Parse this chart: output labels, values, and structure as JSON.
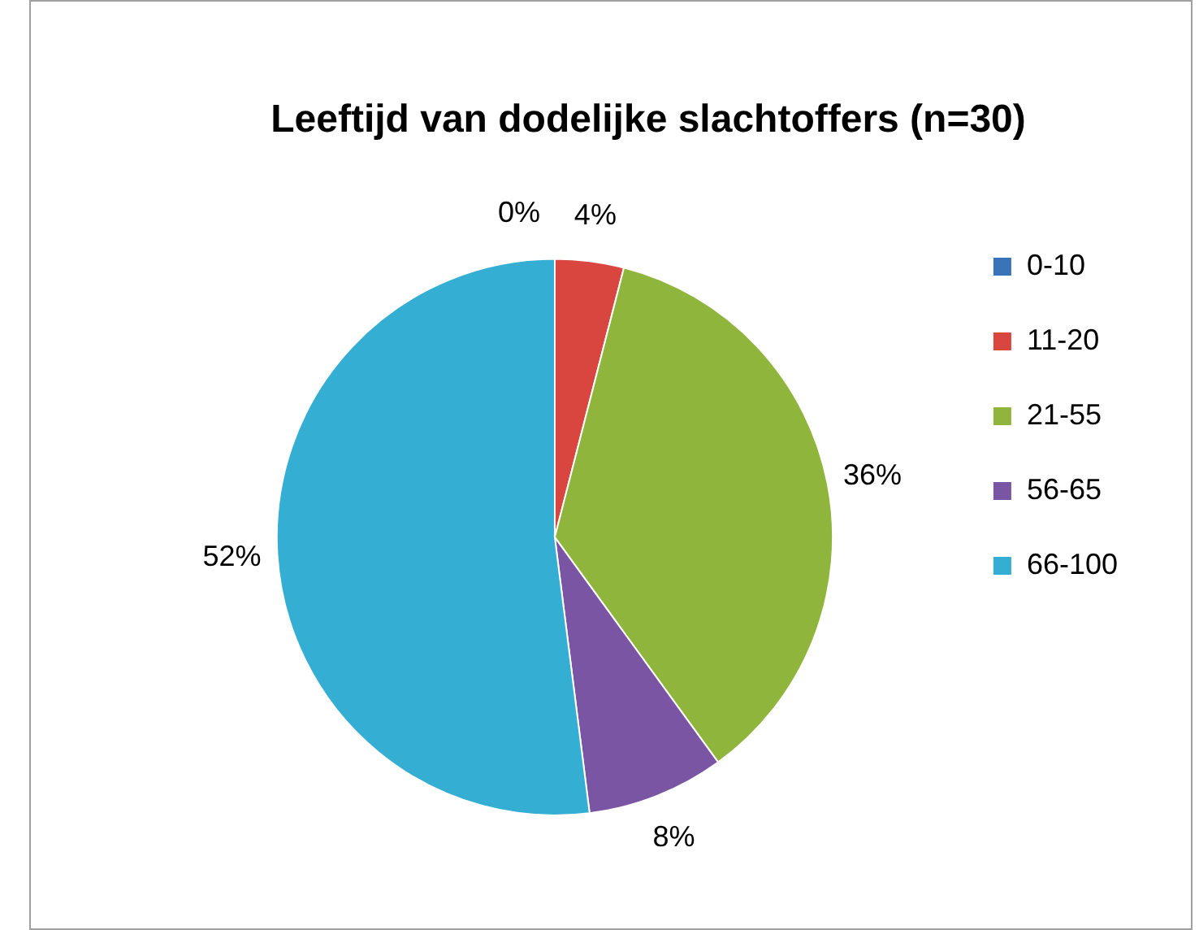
{
  "chart_data": {
    "type": "pie",
    "title": "Leeftijd van dodelijke slachtoffers (n=30)",
    "categories": [
      "0-10",
      "11-20",
      "21-55",
      "56-65",
      "66-100"
    ],
    "values": [
      0,
      4,
      36,
      8,
      52
    ],
    "value_labels": [
      "0%",
      "4%",
      "36%",
      "8%",
      "52%"
    ],
    "colors": [
      "#3a73b8",
      "#d9453f",
      "#8fb53d",
      "#7a55a3",
      "#35aed3"
    ],
    "legend": "right"
  }
}
